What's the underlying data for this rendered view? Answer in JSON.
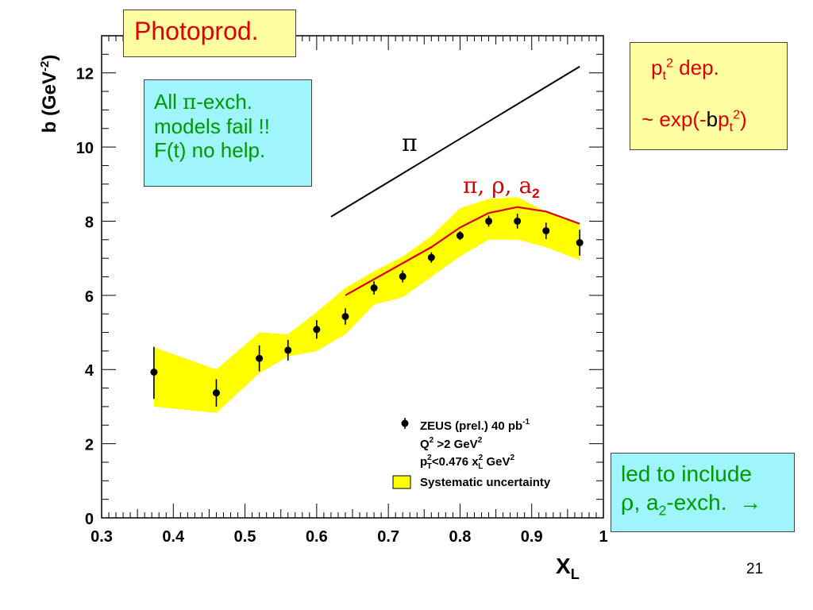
{
  "chart_data": {
    "type": "scatter",
    "xlabel": "X",
    "xlabel_sub": "L",
    "ylabel": "b (GeV",
    "ylabel_sup": "-2",
    "ylabel_end": ")",
    "xlim": [
      0.3,
      1.0
    ],
    "ylim": [
      0,
      13
    ],
    "x_ticks": [
      0.3,
      0.4,
      0.5,
      0.6,
      0.7,
      0.8,
      0.9,
      1.0
    ],
    "x_tick_labels": [
      "0.3",
      "0.4",
      "0.5",
      "0.6",
      "0.7",
      "0.8",
      "0.9",
      "1"
    ],
    "y_ticks": [
      0,
      2,
      4,
      6,
      8,
      10,
      12
    ],
    "y_tick_labels": [
      "0",
      "2",
      "4",
      "6",
      "8",
      "10",
      "12"
    ],
    "grid": false,
    "legend_position": "bottom-right",
    "legend": {
      "data_line1": "ZEUS (prel.) 40 pb",
      "data_line1_sup": "-1",
      "data_line2": "Q",
      "data_line2_sup": "2",
      "data_line2_rest": " >2 GeV",
      "data_line2_sup2": "2",
      "data_line3": "p",
      "data_line3_sup": "2",
      "data_line3_sub": "T",
      "data_line3_mid": "<0.476 x",
      "data_line3_sup2": "2",
      "data_line3_sub2": "L",
      "data_line3_rest": " GeV",
      "data_line3_sup3": "2",
      "band_label": "Systematic uncertainty"
    },
    "points": [
      {
        "x": 0.373,
        "y": 3.93,
        "err_lo": 0.72,
        "err_hi": 0.68
      },
      {
        "x": 0.46,
        "y": 3.37,
        "err_lo": 0.37,
        "err_hi": 0.37
      },
      {
        "x": 0.52,
        "y": 4.3,
        "err_lo": 0.35,
        "err_hi": 0.35
      },
      {
        "x": 0.56,
        "y": 4.52,
        "err_lo": 0.28,
        "err_hi": 0.28
      },
      {
        "x": 0.6,
        "y": 5.08,
        "err_lo": 0.25,
        "err_hi": 0.25
      },
      {
        "x": 0.64,
        "y": 5.43,
        "err_lo": 0.22,
        "err_hi": 0.22
      },
      {
        "x": 0.68,
        "y": 6.2,
        "err_lo": 0.18,
        "err_hi": 0.18
      },
      {
        "x": 0.72,
        "y": 6.51,
        "err_lo": 0.16,
        "err_hi": 0.16
      },
      {
        "x": 0.76,
        "y": 7.02,
        "err_lo": 0.14,
        "err_hi": 0.14
      },
      {
        "x": 0.8,
        "y": 7.61,
        "err_lo": 0.12,
        "err_hi": 0.12
      },
      {
        "x": 0.84,
        "y": 8.0,
        "err_lo": 0.15,
        "err_hi": 0.15
      },
      {
        "x": 0.88,
        "y": 8.0,
        "err_lo": 0.2,
        "err_hi": 0.2
      },
      {
        "x": 0.92,
        "y": 7.74,
        "err_lo": 0.22,
        "err_hi": 0.22
      },
      {
        "x": 0.967,
        "y": 7.42,
        "err_lo": 0.35,
        "err_hi": 0.35
      }
    ],
    "band": {
      "x": [
        0.373,
        0.46,
        0.52,
        0.56,
        0.6,
        0.64,
        0.68,
        0.72,
        0.76,
        0.8,
        0.84,
        0.88,
        0.92,
        0.967
      ],
      "upper": [
        4.6,
        4.0,
        5.0,
        4.95,
        5.55,
        6.2,
        6.65,
        7.05,
        7.6,
        8.35,
        8.6,
        8.65,
        8.25,
        7.95
      ],
      "lower": [
        3.0,
        2.83,
        3.9,
        4.35,
        4.5,
        4.95,
        5.75,
        5.95,
        6.5,
        7.05,
        7.5,
        7.5,
        7.3,
        6.95
      ]
    },
    "pion_line": {
      "label": "π",
      "x": [
        0.62,
        0.967
      ],
      "y": [
        8.12,
        12.17
      ]
    },
    "model_curve": {
      "label": "π, ρ, a",
      "label_sub": "2",
      "color": "#dd0000",
      "x": [
        0.64,
        0.7,
        0.76,
        0.8,
        0.84,
        0.88,
        0.92,
        0.967
      ],
      "y": [
        6.0,
        6.65,
        7.3,
        7.83,
        8.22,
        8.38,
        8.26,
        7.93
      ]
    },
    "colors": {
      "band": "#ffff00",
      "points": "#000000",
      "model": "#dd0000",
      "pion_line": "#000000"
    }
  },
  "annotations": {
    "photoprod": "Photoprod.",
    "pion_box": {
      "line1_a": "All ",
      "line1_pi": "π",
      "line1_b": "-exch.",
      "line2": "models fail !!",
      "line3": "F(t) no help."
    },
    "pt_box": {
      "l1_p": "p",
      "l1_sub": "t",
      "l1_sup": "2",
      "l1_rest": " dep.",
      "l2_a": "~ exp(-",
      "l2_b": "b",
      "l2_p": "p",
      "l2_sub": "t",
      "l2_sup": "2",
      "l2_end": ")"
    },
    "led_box": {
      "line1": "led to include",
      "rho": "ρ",
      "mid": ", a",
      "sub": "2",
      "rest": "-exch.",
      "arrow": "→"
    }
  },
  "page_number": "21"
}
